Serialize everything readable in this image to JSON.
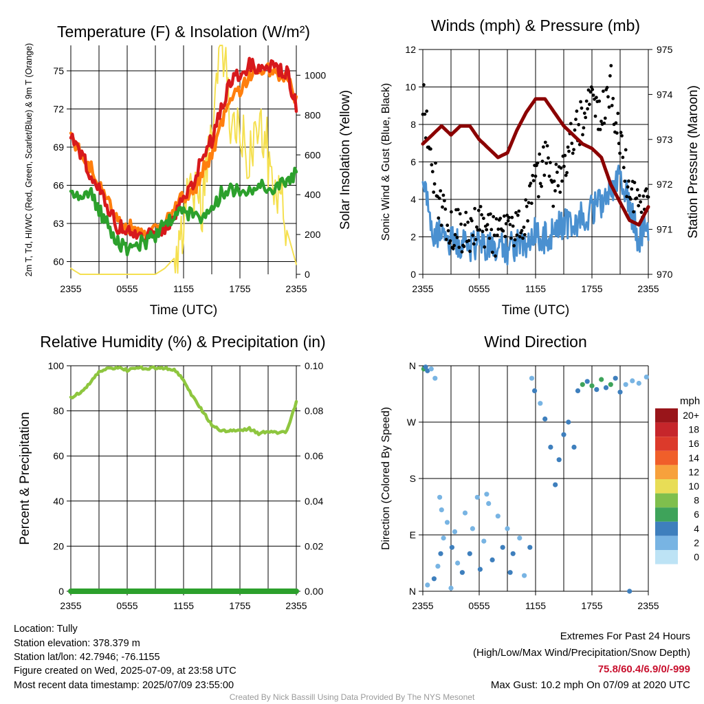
{
  "colors": {
    "temp": "#d7191c",
    "dewpoint": "#2ca02c",
    "heatindex": "#d7191c",
    "temp9m": "#ff7f0e",
    "solar": "#f5e050",
    "wind": "#4a90d0",
    "gust": "#000000",
    "pressure": "#8b0000",
    "rh": "#8ec63f",
    "precip": "#2ca02c",
    "extremes": "#c8102e"
  },
  "x_tick_labels": [
    "2355",
    "0555",
    "1155",
    "1755",
    "2355"
  ],
  "chart_data": [
    {
      "type": "line",
      "title": "Temperature (F) & Insolation (W/m²)",
      "xlabel": "Time (UTC)",
      "ylabel": "2m T, Td, HI/WC (Red, Green, Scarlet/Blue) & 9m T (Orange)",
      "y2label": "Solar Insolation (Yellow)",
      "x_hours": [
        0,
        1,
        2,
        3,
        4,
        5,
        6,
        7,
        8,
        9,
        10,
        11,
        12,
        13,
        14,
        15,
        16,
        17,
        18,
        19,
        20,
        21,
        22,
        23,
        24
      ],
      "ylim": [
        59,
        77
      ],
      "yticks": [
        60,
        63,
        66,
        69,
        72,
        75
      ],
      "y2lim": [
        0,
        1150
      ],
      "y2ticks": [
        0,
        200,
        400,
        600,
        800,
        1000
      ],
      "series": [
        {
          "name": "9m T (Orange)",
          "key": "temp9m",
          "axis": "left",
          "values": [
            69.8,
            68.8,
            67.6,
            66.2,
            64.6,
            63.4,
            62.8,
            62.7,
            62.4,
            62.9,
            63.0,
            64.0,
            65.2,
            65.4,
            67.2,
            68.4,
            70.7,
            72.6,
            73.5,
            74.6,
            74.9,
            75.0,
            74.7,
            74.6,
            72.8
          ]
        },
        {
          "name": "2m T (Red)",
          "key": "temp",
          "axis": "left",
          "values": [
            70.0,
            68.6,
            67.0,
            65.6,
            64.0,
            62.8,
            62.3,
            62.0,
            61.9,
            62.5,
            62.7,
            63.5,
            65.6,
            65.7,
            68.4,
            69.5,
            72.1,
            74.3,
            74.9,
            75.4,
            75.3,
            75.4,
            75.2,
            74.9,
            72.1
          ]
        },
        {
          "name": "2m Td (Green)",
          "key": "dewpoint",
          "axis": "left",
          "values": [
            65.5,
            65.1,
            65.6,
            64.0,
            62.8,
            61.6,
            60.7,
            61.4,
            61.6,
            62.1,
            63.0,
            63.7,
            63.7,
            63.8,
            63.6,
            64.3,
            65.3,
            65.6,
            65.7,
            65.6,
            66.0,
            65.8,
            66.0,
            66.2,
            66.9
          ]
        },
        {
          "name": "Solar Insolation (Yellow)",
          "key": "solar",
          "axis": "right",
          "values": [
            30,
            0,
            0,
            0,
            0,
            0,
            0,
            0,
            0,
            0,
            30,
            80,
            230,
            450,
            350,
            700,
            1150,
            800,
            650,
            600,
            820,
            600,
            380,
            220,
            50
          ]
        }
      ]
    },
    {
      "type": "scatter",
      "title": "Winds (mph) & Pressure (mb)",
      "xlabel": "Time (UTC)",
      "ylabel": "Sonic Wind & Gust (Blue, Black)",
      "y2label": "Station Pressure (Maroon)",
      "x_hours": [
        0,
        1,
        2,
        3,
        4,
        5,
        6,
        7,
        8,
        9,
        10,
        11,
        12,
        13,
        14,
        15,
        16,
        17,
        18,
        19,
        20,
        21,
        22,
        23,
        24
      ],
      "ylim": [
        0,
        12
      ],
      "yticks": [
        0,
        2,
        4,
        6,
        8,
        10,
        12
      ],
      "y2lim": [
        970,
        975
      ],
      "y2ticks": [
        970,
        971,
        972,
        973,
        974,
        975
      ],
      "series": [
        {
          "name": "Sonic Wind (Blue)",
          "key": "wind",
          "axis": "left",
          "values": [
            5.5,
            2.3,
            2.0,
            1.8,
            1.6,
            1.5,
            1.7,
            1.6,
            1.4,
            1.2,
            1.7,
            1.6,
            2.2,
            1.9,
            2.3,
            2.7,
            2.8,
            3.1,
            3.4,
            3.8,
            4.6,
            5.5,
            3.6,
            1.8,
            2.6
          ]
        },
        {
          "name": "Gust (Black)",
          "key": "gust",
          "axis": "left",
          "values": [
            9.3,
            5.6,
            3.3,
            2.5,
            2.3,
            2.2,
            2.6,
            2.1,
            2.0,
            2.2,
            2.6,
            3.0,
            4.8,
            6.3,
            4.5,
            6.1,
            7.5,
            8.4,
            9.8,
            8.2,
            10.1,
            6.6,
            4.8,
            3.4,
            3.5
          ]
        },
        {
          "name": "Station Pressure (Maroon)",
          "key": "pressure",
          "axis": "right",
          "values": [
            972.9,
            973.1,
            973.3,
            973.1,
            973.3,
            973.3,
            973.0,
            972.8,
            972.6,
            972.7,
            973.2,
            973.6,
            973.9,
            973.9,
            973.6,
            973.3,
            973.1,
            972.9,
            972.8,
            972.6,
            972.0,
            971.6,
            971.2,
            971.1,
            971.5
          ]
        }
      ]
    },
    {
      "type": "line",
      "title": "Relative Humidity (%) & Precipitation (in)",
      "xlabel": "",
      "ylabel": "Percent & Precipitation",
      "x_hours": [
        0,
        1,
        2,
        3,
        4,
        5,
        6,
        7,
        8,
        9,
        10,
        11,
        12,
        13,
        14,
        15,
        16,
        17,
        18,
        19,
        20,
        21,
        22,
        23,
        24
      ],
      "ylim": [
        0,
        100
      ],
      "yticks": [
        0,
        20,
        40,
        60,
        80,
        100
      ],
      "y2lim": [
        0,
        0.1
      ],
      "y2ticks": [
        "0.00",
        "0.02",
        "0.04",
        "0.06",
        "0.08",
        "0.10"
      ],
      "series": [
        {
          "name": "RH",
          "key": "rh",
          "axis": "left",
          "values": [
            86,
            88,
            92,
            97,
            99,
            99,
            98,
            99,
            99,
            99,
            99,
            98,
            94,
            86,
            80,
            74,
            71,
            71,
            71,
            72,
            70,
            71,
            70,
            71,
            84
          ]
        },
        {
          "name": "Precipitation",
          "key": "precip",
          "axis": "right",
          "values": [
            0,
            0,
            0,
            0,
            0,
            0,
            0,
            0,
            0,
            0,
            0,
            0,
            0,
            0,
            0,
            0,
            0,
            0,
            0,
            0,
            0,
            0,
            0,
            0,
            0
          ]
        }
      ]
    },
    {
      "type": "scatter",
      "title": "Wind Direction",
      "xlabel": "",
      "ylabel": "Direction (Colored By Speed)",
      "yticks": [
        "N",
        "E",
        "S",
        "W",
        "N"
      ],
      "ylim": [
        0,
        360
      ],
      "colorbar": {
        "unit": "mph",
        "labels": [
          "20+",
          "18",
          "16",
          "14",
          "12",
          "10",
          "8",
          "6",
          "4",
          "2",
          "0"
        ],
        "colors": [
          "#99151a",
          "#c6262b",
          "#dc3a2b",
          "#f05f2a",
          "#f7a13c",
          "#e8dd56",
          "#7fbf4d",
          "#3ea35a",
          "#3e7fbd",
          "#78b4e3",
          "#bde3f5"
        ]
      },
      "points": [
        [
          0.1,
          355,
          6
        ],
        [
          0.3,
          358,
          4
        ],
        [
          0.5,
          352,
          4
        ],
        [
          0.9,
          355,
          2
        ],
        [
          1.3,
          340,
          2
        ],
        [
          0.5,
          10,
          2
        ],
        [
          1.2,
          20,
          4
        ],
        [
          1.6,
          40,
          2
        ],
        [
          1.9,
          60,
          4
        ],
        [
          2.2,
          85,
          2
        ],
        [
          1.8,
          150,
          2
        ],
        [
          2.0,
          130,
          2
        ],
        [
          2.6,
          110,
          2
        ],
        [
          3.1,
          70,
          4
        ],
        [
          3.4,
          95,
          2
        ],
        [
          3.7,
          45,
          2
        ],
        [
          4.2,
          30,
          4
        ],
        [
          4.5,
          125,
          2
        ],
        [
          5.0,
          60,
          4
        ],
        [
          5.3,
          100,
          2
        ],
        [
          5.8,
          150,
          2
        ],
        [
          6.1,
          35,
          4
        ],
        [
          6.5,
          80,
          2
        ],
        [
          7.0,
          140,
          2
        ],
        [
          7.4,
          50,
          4
        ],
        [
          8.0,
          120,
          2
        ],
        [
          8.5,
          70,
          4
        ],
        [
          9.0,
          100,
          2
        ],
        [
          9.6,
          60,
          4
        ],
        [
          10.3,
          85,
          2
        ],
        [
          10.8,
          25,
          2
        ],
        [
          11.4,
          70,
          4
        ],
        [
          11.6,
          340,
          2
        ],
        [
          11.9,
          320,
          4
        ],
        [
          12.5,
          300,
          2
        ],
        [
          13.0,
          275,
          4
        ],
        [
          13.6,
          230,
          4
        ],
        [
          14.1,
          170,
          4
        ],
        [
          14.5,
          210,
          4
        ],
        [
          15.0,
          250,
          4
        ],
        [
          15.5,
          270,
          4
        ],
        [
          16.1,
          230,
          4
        ],
        [
          16.5,
          320,
          4
        ],
        [
          17.0,
          330,
          6
        ],
        [
          17.5,
          335,
          4
        ],
        [
          18.0,
          328,
          6
        ],
        [
          18.5,
          322,
          4
        ],
        [
          19.0,
          338,
          6
        ],
        [
          19.5,
          325,
          4
        ],
        [
          20.0,
          330,
          6
        ],
        [
          20.5,
          340,
          4
        ],
        [
          21.0,
          318,
          4
        ],
        [
          21.6,
          330,
          2
        ],
        [
          22.3,
          336,
          2
        ],
        [
          23.0,
          332,
          2
        ],
        [
          23.8,
          342,
          2
        ],
        [
          22.0,
          0,
          4
        ],
        [
          3.0,
          5,
          2
        ],
        [
          6.8,
          155,
          2
        ],
        [
          9.3,
          30,
          4
        ]
      ]
    }
  ],
  "info": {
    "location": "Location: Tully",
    "elevation": "Station elevation: 378.379 m",
    "latlon": "Station lat/lon: 42.7946; -76.1155",
    "created": "Figure created on Wed, 2025-07-09, at 23:58 UTC",
    "recent": "Most recent data timestamp: 2025/07/09 23:55:00"
  },
  "extremes": {
    "title": "Extremes For Past 24 Hours",
    "subtitle": "(High/Low/Max Wind/Precipitation/Snow Depth)",
    "values": "75.8/60.4/6.9/0/-999",
    "gust": "Max Gust: 10.2 mph On 07/09 at 2020 UTC"
  },
  "credit": "Created By Nick Bassill Using Data Provided By The NYS Mesonet"
}
